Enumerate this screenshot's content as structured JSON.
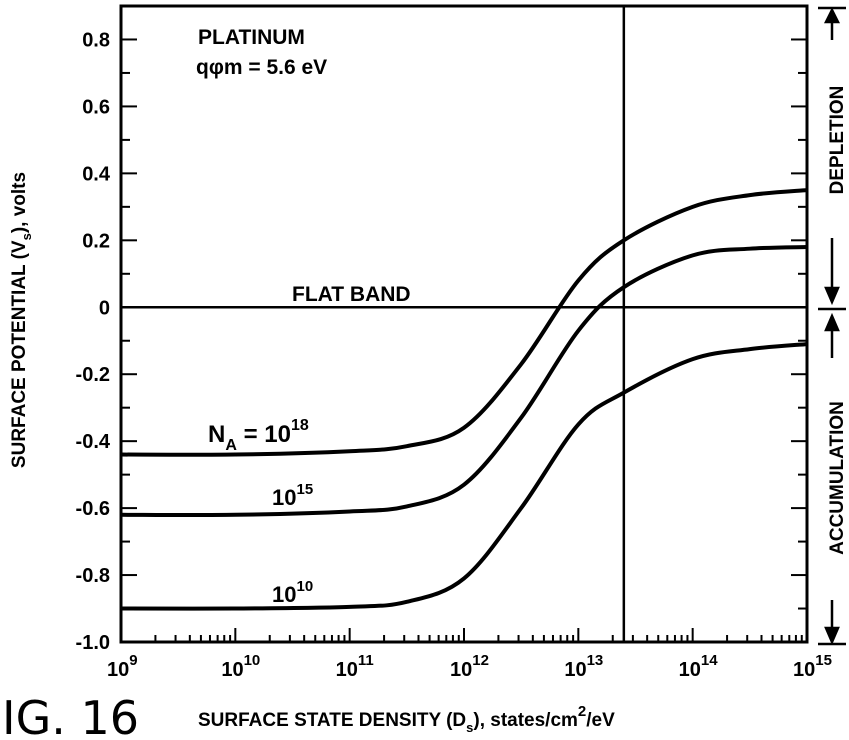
{
  "figure_label": "IG. 16",
  "chart_data": {
    "type": "line",
    "title": "",
    "xlabel_main": "SURFACE STATE DENSITY (D",
    "xlabel_sub": "s",
    "xlabel_tail": "), states/cm",
    "xlabel_sup": "2",
    "xlabel_end": "/eV",
    "ylabel_main": "SURFACE POTENTIAL (V",
    "ylabel_sub": "s",
    "ylabel_tail": "), volts",
    "x_scale": "log",
    "xlim": [
      1000000000.0,
      1000000000000000.0
    ],
    "ylim": [
      -1.0,
      0.9
    ],
    "x_ticks": [
      {
        "value": 1000000000.0,
        "base": "10",
        "exp": "9"
      },
      {
        "value": 10000000000.0,
        "base": "10",
        "exp": "10"
      },
      {
        "value": 100000000000.0,
        "base": "10",
        "exp": "11"
      },
      {
        "value": 1000000000000.0,
        "base": "10",
        "exp": "12"
      },
      {
        "value": 10000000000000.0,
        "base": "10",
        "exp": "13"
      },
      {
        "value": 100000000000000.0,
        "base": "10",
        "exp": "14"
      },
      {
        "value": 1000000000000000.0,
        "base": "10",
        "exp": "15"
      }
    ],
    "y_ticks": [
      {
        "value": 0.8,
        "label": "0.8"
      },
      {
        "value": 0.6,
        "label": "0.6"
      },
      {
        "value": 0.4,
        "label": "0.4"
      },
      {
        "value": 0.2,
        "label": "0.2"
      },
      {
        "value": 0.0,
        "label": "0"
      },
      {
        "value": -0.2,
        "label": "-0.2"
      },
      {
        "value": -0.4,
        "label": "-0.4"
      },
      {
        "value": -0.6,
        "label": "-0.6"
      },
      {
        "value": -0.8,
        "label": "-0.8"
      },
      {
        "value": -1.0,
        "label": "-1.0"
      }
    ],
    "annotations": {
      "material": "PLATINUM",
      "work_function": "qφm = 5.6 eV",
      "flat_band": "FLAT BAND",
      "na_prefix": "N",
      "na_sub": "A",
      "na_eq": " = 10",
      "na_exp": "18",
      "label_1e15_base": "10",
      "label_1e15_exp": "15",
      "label_1e10_base": "10",
      "label_1e10_exp": "10",
      "depletion": "DEPLETION",
      "accumulation": "ACCUMULATION"
    },
    "reference_line_x": 25000000000000.0,
    "flat_band_y": 0.0,
    "series": [
      {
        "key": "na18",
        "x": [
          1000000000.0,
          10000000000.0,
          100000000000.0,
          316000000000.0,
          1000000000000.0,
          3160000000000.0,
          10000000000000.0,
          25000000000000.0,
          100000000000000.0,
          316000000000000.0,
          1000000000000000.0
        ],
        "y": [
          -0.44,
          -0.44,
          -0.43,
          -0.415,
          -0.36,
          -0.17,
          0.08,
          0.2,
          0.3,
          0.335,
          0.35
        ]
      },
      {
        "key": "na15",
        "x": [
          1000000000.0,
          10000000000.0,
          100000000000.0,
          316000000000.0,
          1000000000000.0,
          3160000000000.0,
          10000000000000.0,
          25000000000000.0,
          100000000000000.0,
          316000000000000.0,
          1000000000000000.0
        ],
        "y": [
          -0.62,
          -0.62,
          -0.61,
          -0.595,
          -0.53,
          -0.33,
          -0.07,
          0.06,
          0.155,
          0.175,
          0.18
        ]
      },
      {
        "key": "na10",
        "x": [
          1000000000.0,
          10000000000.0,
          100000000000.0,
          316000000000.0,
          1000000000000.0,
          3160000000000.0,
          10000000000000.0,
          25000000000000.0,
          100000000000000.0,
          316000000000000.0,
          1000000000000000.0
        ],
        "y": [
          -0.9,
          -0.9,
          -0.895,
          -0.88,
          -0.81,
          -0.6,
          -0.35,
          -0.255,
          -0.155,
          -0.125,
          -0.11
        ]
      }
    ]
  }
}
